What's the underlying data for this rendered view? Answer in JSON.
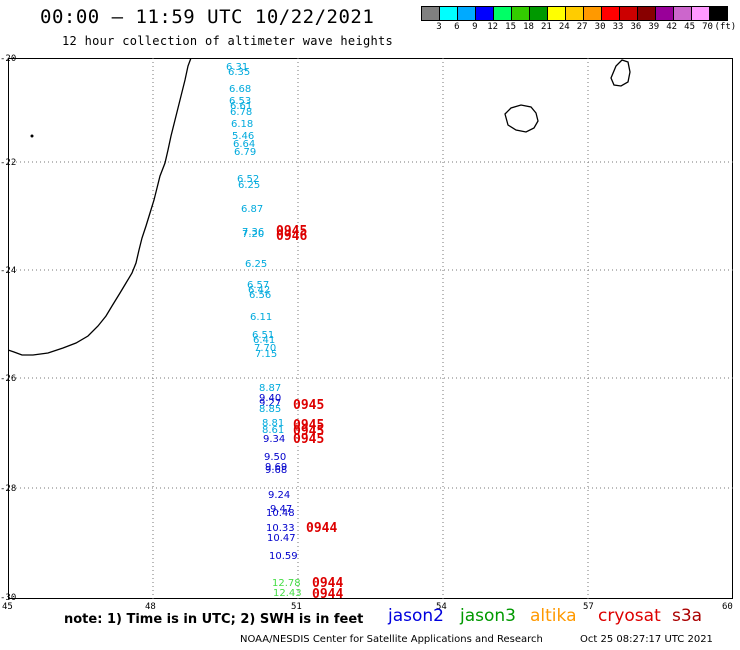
{
  "title": "00:00 — 11:59 UTC 10/22/2021",
  "subtitle": "12 hour collection of altimeter wave heights",
  "scale": {
    "colors": [
      "#808080",
      "#00ffff",
      "#00aaff",
      "#0000ff",
      "#00ff66",
      "#33cc00",
      "#009900",
      "#ffff00",
      "#ffcc00",
      "#ff9900",
      "#ff0000",
      "#cc0000",
      "#880000",
      "#990099",
      "#cc66cc",
      "#ff99ff",
      "#000000"
    ],
    "labels": [
      "3",
      "6",
      "9",
      "12",
      "15",
      "18",
      "21",
      "24",
      "27",
      "30",
      "33",
      "36",
      "39",
      "42",
      "45",
      "70",
      "(ft)"
    ]
  },
  "axes": {
    "lat_labels": [
      "-20",
      "-22",
      "-24",
      "-26",
      "-28",
      "-30"
    ],
    "lon_labels": [
      "45",
      "48",
      "51",
      "54",
      "57",
      "60"
    ]
  },
  "points": [
    {
      "v": "6.31",
      "c": "#00aadd"
    },
    {
      "v": "6.35",
      "c": "#00aadd"
    },
    {
      "v": "6.68",
      "c": "#00aadd"
    },
    {
      "v": "6.53",
      "c": "#00aadd"
    },
    {
      "v": "6.61",
      "c": "#00aadd"
    },
    {
      "v": "6.78",
      "c": "#00aadd"
    },
    {
      "v": "6.18",
      "c": "#00aadd"
    },
    {
      "v": "5.46",
      "c": "#00aadd"
    },
    {
      "v": "6.64",
      "c": "#00aadd"
    },
    {
      "v": "6.79",
      "c": "#00aadd"
    },
    {
      "v": "6.52",
      "c": "#00aadd"
    },
    {
      "v": "6.25",
      "c": "#00aadd"
    },
    {
      "v": "6.87",
      "c": "#00aadd"
    },
    {
      "v": "7.36",
      "c": "#00aadd"
    },
    {
      "v": "7.20",
      "c": "#00aadd"
    },
    {
      "v": "6.25",
      "c": "#00aadd"
    },
    {
      "v": "6.57",
      "c": "#00aadd"
    },
    {
      "v": "6.42",
      "c": "#00aadd"
    },
    {
      "v": "6.56",
      "c": "#00aadd"
    },
    {
      "v": "6.11",
      "c": "#00aadd"
    },
    {
      "v": "6.51",
      "c": "#00aadd"
    },
    {
      "v": "6.41",
      "c": "#00aadd"
    },
    {
      "v": "7.70",
      "c": "#00aadd"
    },
    {
      "v": "7.15",
      "c": "#00aadd"
    },
    {
      "v": "8.87",
      "c": "#00aadd"
    },
    {
      "v": "9.40",
      "c": "#0000cc"
    },
    {
      "v": "9.27",
      "c": "#0000cc"
    },
    {
      "v": "8.85",
      "c": "#00aadd"
    },
    {
      "v": "8.81",
      "c": "#00aadd"
    },
    {
      "v": "8.61",
      "c": "#00aadd"
    },
    {
      "v": "9.34",
      "c": "#0000cc"
    },
    {
      "v": "9.50",
      "c": "#0000cc"
    },
    {
      "v": "9.69",
      "c": "#0000cc"
    },
    {
      "v": "9.68",
      "c": "#0000cc"
    },
    {
      "v": "9.24",
      "c": "#0000cc"
    },
    {
      "v": "9.47",
      "c": "#0000cc"
    },
    {
      "v": "10.48",
      "c": "#0000cc"
    },
    {
      "v": "10.33",
      "c": "#0000cc"
    },
    {
      "v": "10.47",
      "c": "#0000cc"
    },
    {
      "v": "10.59",
      "c": "#0000cc"
    },
    {
      "v": "12.78",
      "c": "#44dd44"
    },
    {
      "v": "12.43",
      "c": "#44dd44"
    }
  ],
  "times": [
    "0945",
    "0946",
    "0945",
    "0945",
    "0945",
    "0945",
    "0944",
    "0944",
    "0944"
  ],
  "note": "note: 1) Time is in UTC; 2) SWH is in feet",
  "legend": [
    {
      "label": "jason2",
      "color": "#0000dd"
    },
    {
      "label": "jason3",
      "color": "#009900"
    },
    {
      "label": "altika",
      "color": "#ff9900"
    },
    {
      "label": "cryosat",
      "color": "#dd0000"
    },
    {
      "label": "s3a",
      "color": "#aa0000"
    }
  ],
  "credit": "NOAA/NESDIS Center for Satellite Applications and Research",
  "credit_date": "Oct 25 08:27:17 UTC 2021"
}
